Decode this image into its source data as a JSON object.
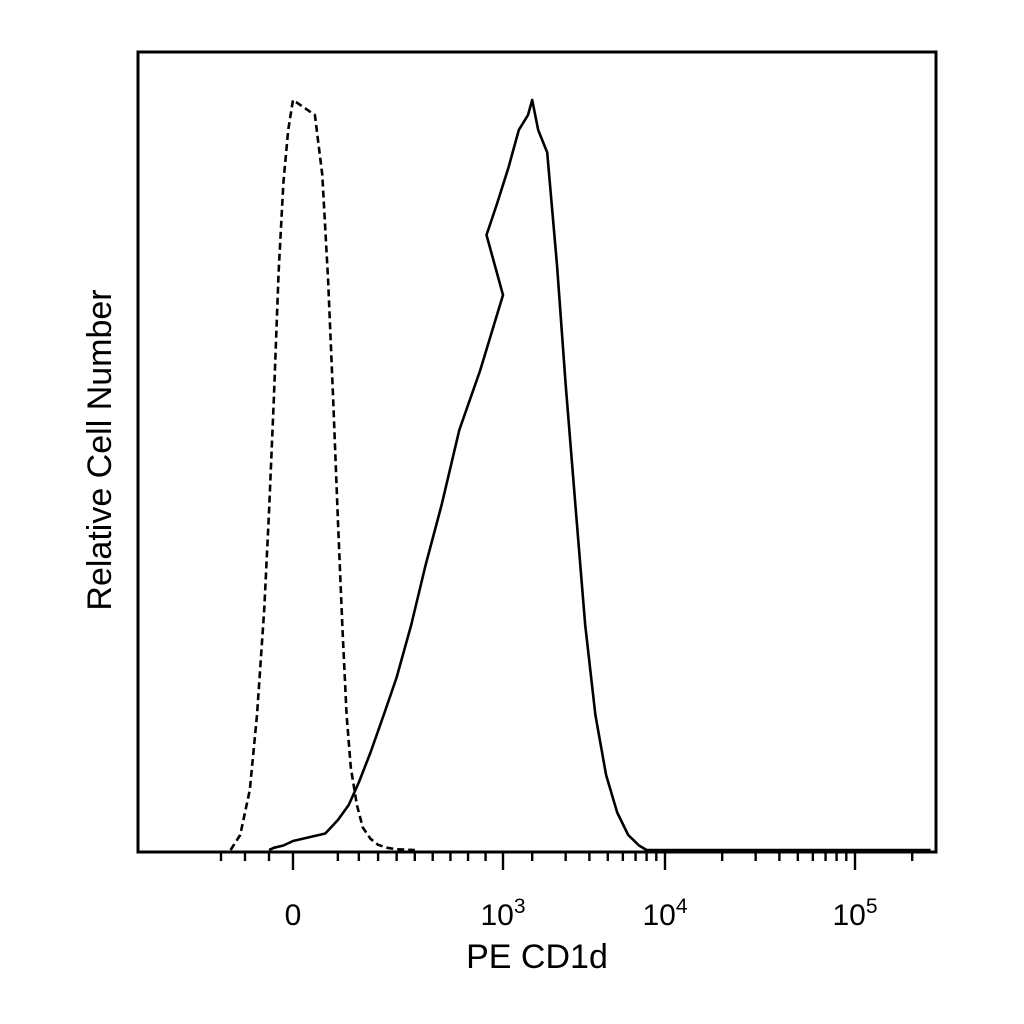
{
  "chart_data": {
    "type": "line",
    "title": "",
    "xlabel": "PE CD1d",
    "ylabel": "Relative Cell Number",
    "x_scale": "biexponential (logicle)",
    "tick_labels": [
      {
        "base": "0",
        "exp": ""
      },
      {
        "base": "10",
        "exp": "3"
      },
      {
        "base": "10",
        "exp": "4"
      },
      {
        "base": "10",
        "exp": "5"
      }
    ],
    "tick_values": [
      0,
      1000,
      10000,
      100000
    ],
    "xlim": [
      -400,
      250000
    ],
    "ylim": [
      0,
      100
    ],
    "legend": "none",
    "grid": false,
    "series": [
      {
        "style": "dashed",
        "color": "#000000",
        "x": [
          -260,
          -220,
          -180,
          -150,
          -120,
          -100,
          -80,
          -60,
          -40,
          -20,
          0,
          20,
          40,
          60,
          80,
          100,
          120,
          140,
          160,
          190,
          220,
          260,
          300,
          350,
          400,
          500
        ],
        "y": [
          0,
          2,
          8,
          18,
          32,
          45,
          60,
          77,
          89,
          96,
          100,
          98,
          90,
          76,
          60,
          44,
          30,
          18,
          11,
          6,
          3,
          1.5,
          0.7,
          0.3,
          0.1,
          0
        ]
      },
      {
        "style": "solid",
        "color": "#000000",
        "x": [
          -80,
          -40,
          0,
          50,
          100,
          150,
          200,
          260,
          330,
          400,
          480,
          560,
          650,
          750,
          870,
          1000,
          1150,
          1300,
          1500,
          1700,
          1900,
          2000,
          2150,
          2400,
          2700,
          3000,
          3400,
          3800,
          4300,
          4900,
          5600,
          6400,
          7300,
          8000
        ],
        "y": [
          0.3,
          0.6,
          1.2,
          2.2,
          4,
          6,
          9,
          13,
          18,
          23,
          30,
          38,
          46,
          56,
          64,
          74,
          82,
          86,
          91,
          96,
          98,
          100,
          96,
          93,
          78,
          62,
          45,
          30,
          18,
          10,
          5,
          2,
          0.6,
          0
        ]
      }
    ]
  }
}
